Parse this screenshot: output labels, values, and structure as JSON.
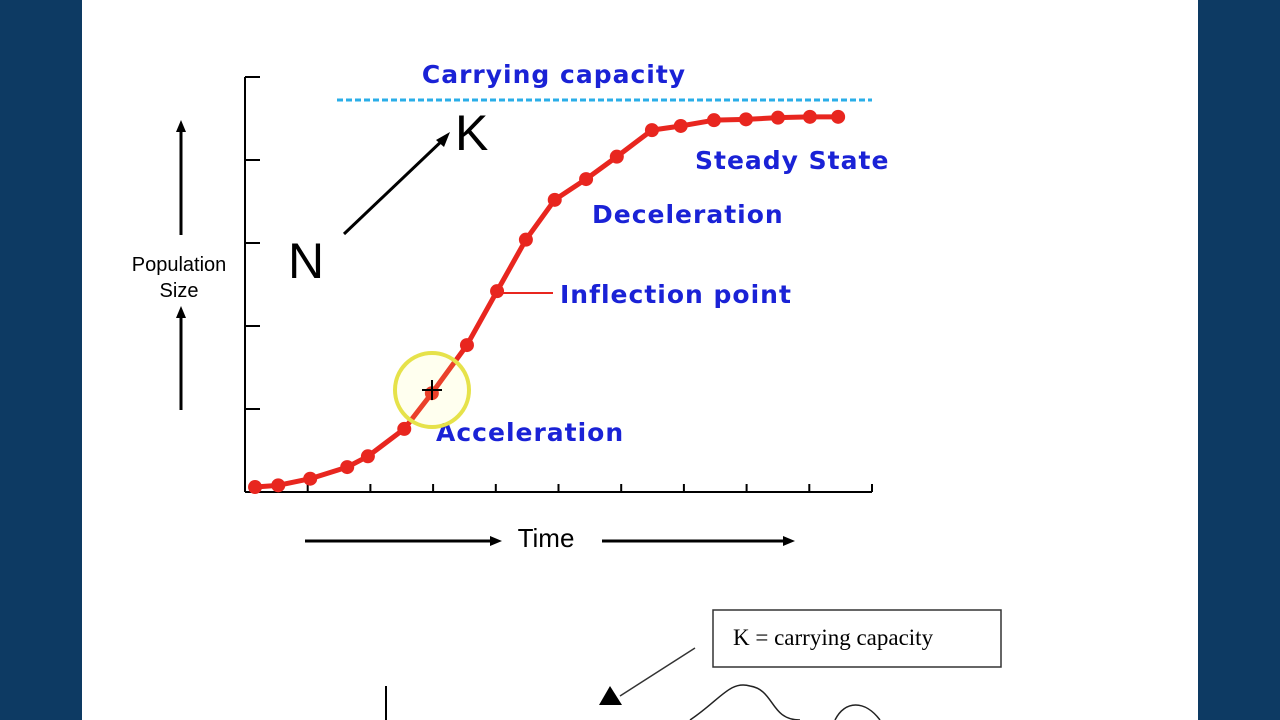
{
  "chart_data": {
    "type": "line",
    "x": [
      0.16,
      0.53,
      1.04,
      1.63,
      1.96,
      2.54,
      2.98,
      3.54,
      4.02,
      4.48,
      4.94,
      5.44,
      5.93,
      6.49,
      6.95,
      7.48,
      7.99,
      8.5,
      9.01,
      9.46
    ],
    "series": [
      {
        "color": "#e8261f",
        "values": [
          0.06,
          0.08,
          0.16,
          0.3,
          0.43,
          0.76,
          1.19,
          1.77,
          2.42,
          3.04,
          3.52,
          3.77,
          4.04,
          4.36,
          4.41,
          4.48,
          4.49,
          4.51,
          4.52,
          4.52
        ]
      }
    ],
    "xlim": [
      0,
      10
    ],
    "xticks": [
      1,
      2,
      3,
      4,
      5,
      6,
      7,
      8,
      9,
      10
    ],
    "ylim": [
      0,
      5
    ],
    "yticks": [
      1,
      2,
      3,
      4,
      5
    ],
    "x_label": "Time",
    "y_label": [
      "Population",
      "Size"
    ],
    "annotations": [
      "Carrying capacity",
      "K",
      "N",
      "Steady State",
      "Deceleration",
      "Inflection point",
      "Acceleration"
    ],
    "note_box": "K = carrying capacity"
  }
}
